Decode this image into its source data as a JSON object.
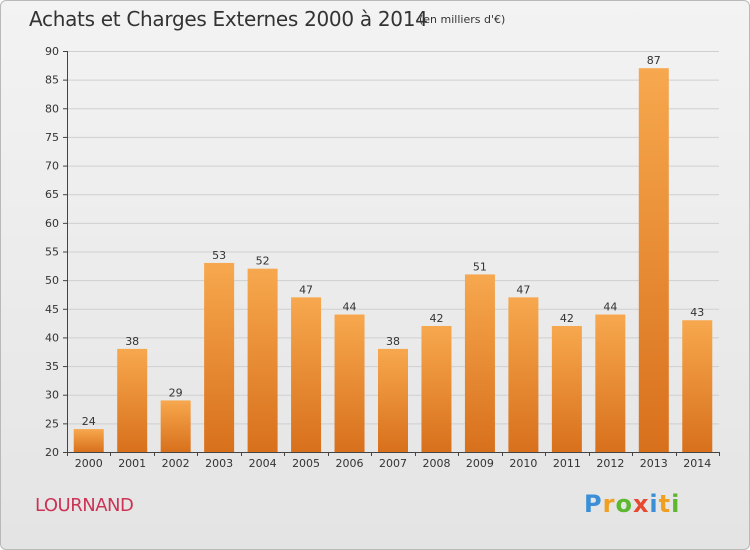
{
  "title": "Achats et Charges Externes 2000 à 2014",
  "subtitle": "(en milliers d'€)",
  "commune": "LOURNAND",
  "logo": {
    "letters": [
      {
        "char": "P",
        "color": "#3a8fd6"
      },
      {
        "char": "r",
        "color": "#f0a020"
      },
      {
        "char": "o",
        "color": "#5cb82e"
      },
      {
        "char": "x",
        "color": "#e8482e"
      },
      {
        "char": "i",
        "color": "#3a8fd6"
      },
      {
        "char": "t",
        "color": "#f0a020"
      },
      {
        "char": "i",
        "color": "#5cb82e"
      }
    ]
  },
  "colors": {
    "bar_top": "#f7a84e",
    "bar_bottom": "#d8701c",
    "grid": "#cfcfcf",
    "axis": "#444444",
    "text": "#333333",
    "commune": "#cc3355"
  },
  "chart_data": {
    "type": "bar",
    "categories": [
      "2000",
      "2001",
      "2002",
      "2003",
      "2004",
      "2005",
      "2006",
      "2007",
      "2008",
      "2009",
      "2010",
      "2011",
      "2012",
      "2013",
      "2014"
    ],
    "values": [
      24,
      38,
      29,
      53,
      52,
      47,
      44,
      38,
      42,
      51,
      47,
      42,
      44,
      87,
      43
    ],
    "ylim": [
      20,
      90
    ],
    "yticks": [
      20,
      25,
      30,
      35,
      40,
      45,
      50,
      55,
      60,
      65,
      70,
      75,
      80,
      85,
      90
    ],
    "grid": true,
    "data_labels": true
  }
}
